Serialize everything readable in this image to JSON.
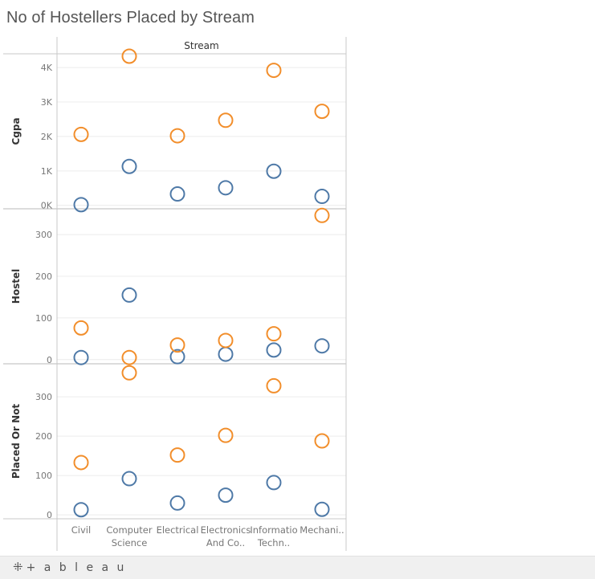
{
  "page_title": "No of Hostellers Placed by Stream",
  "footer": {
    "logo_text": "+ a b l e a u",
    "logo_icon": "tableau-plus-icon"
  },
  "colors": {
    "series_1": "#4e79a7",
    "series_2": "#f28e2b",
    "grid": "#ececec",
    "axis": "#c8c8c8",
    "tick_text": "#777777"
  },
  "chart_data": {
    "type": "scatter",
    "title": "No of Hostellers Placed by Stream",
    "column_header": "Stream",
    "categories": [
      "Civil",
      "Computer Science",
      "Electrical",
      "Electronics And Co..",
      "Information Techn..",
      "Mechani.."
    ],
    "category_labels": [
      [
        "Civil"
      ],
      [
        "Computer",
        "Science"
      ],
      [
        "Electrical"
      ],
      [
        "Electronics",
        "And Co.."
      ],
      [
        "Informatio",
        "Techn.."
      ],
      [
        "Mechani.."
      ]
    ],
    "panes": [
      {
        "ylabel": "Cgpa",
        "ylim": [
          -100,
          4400
        ],
        "ticks": [
          0,
          1000,
          2000,
          3000,
          4000
        ],
        "tick_labels": [
          "0K",
          "1K",
          "2K",
          "3K",
          "4K"
        ],
        "series": [
          {
            "values": [
              20,
              1130,
              330,
              510,
              990,
              260
            ]
          },
          {
            "values": [
              2060,
              4330,
              2020,
              2470,
              3920,
              2730
            ]
          }
        ]
      },
      {
        "ylabel": "Hostel",
        "ylim": [
          -10,
          362
        ],
        "ticks": [
          0,
          100,
          200,
          300
        ],
        "tick_labels": [
          "0",
          "100",
          "200",
          "300"
        ],
        "series": [
          {
            "values": [
              5,
              155,
              7,
              13,
              23,
              33
            ]
          },
          {
            "values": [
              76,
              5,
              35,
              46,
              62,
              346
            ]
          }
        ]
      },
      {
        "ylabel": "Placed Or Not",
        "ylim": [
          -10,
          384
        ],
        "ticks": [
          0,
          100,
          200,
          300
        ],
        "tick_labels": [
          "0",
          "100",
          "200",
          "300"
        ],
        "series": [
          {
            "values": [
              13,
              92,
              30,
              50,
              82,
              14
            ]
          },
          {
            "values": [
              133,
              361,
              152,
              202,
              328,
              188
            ]
          }
        ]
      }
    ],
    "grid": true
  }
}
